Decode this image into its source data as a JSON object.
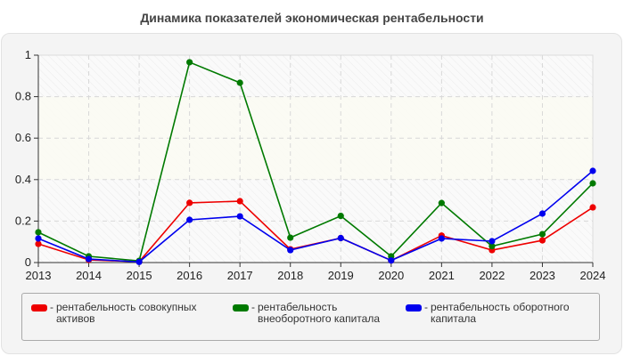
{
  "title": "Динамика показателей экономическая рентабельности",
  "colors": {
    "red": "#ee0000",
    "green": "#007a00",
    "blue": "#0000ee"
  },
  "chart_data": {
    "type": "line",
    "title": "Динамика показателей экономическая рентабельности",
    "xlabel": "",
    "ylabel": "",
    "ylim": [
      0,
      1
    ],
    "yticks": [
      "0",
      "0.2",
      "0.4",
      "0.6",
      "0.8",
      "1"
    ],
    "grid": true,
    "legend_position": "bottom",
    "categories": [
      "2013",
      "2014",
      "2015",
      "2016",
      "2017",
      "2018",
      "2019",
      "2020",
      "2021",
      "2022",
      "2023",
      "2024"
    ],
    "series": [
      {
        "name": "рентабельность совокупных активов",
        "color": "#ee0000",
        "values": [
          0.09,
          0.013,
          0.004,
          0.288,
          0.296,
          0.064,
          0.118,
          0.01,
          0.13,
          0.06,
          0.107,
          0.266
        ]
      },
      {
        "name": "рентабельность внеоборотного капитала",
        "color": "#007a00",
        "values": [
          0.146,
          0.03,
          0.008,
          0.966,
          0.867,
          0.12,
          0.225,
          0.03,
          0.287,
          0.079,
          0.137,
          0.382
        ]
      },
      {
        "name": "рентабельность оборотного капитала",
        "color": "#0000ee",
        "values": [
          0.116,
          0.017,
          0.003,
          0.206,
          0.223,
          0.06,
          0.118,
          0.01,
          0.116,
          0.103,
          0.236,
          0.442
        ]
      }
    ]
  },
  "legend": [
    {
      "label": "рентабельность совокупных активов",
      "color": "#ee0000"
    },
    {
      "label": "рентабельность внеоборотного капитала",
      "color": "#007a00"
    },
    {
      "label": "рентабельность оборотного капитала",
      "color": "#0000ee"
    }
  ],
  "legend_dash": "-"
}
